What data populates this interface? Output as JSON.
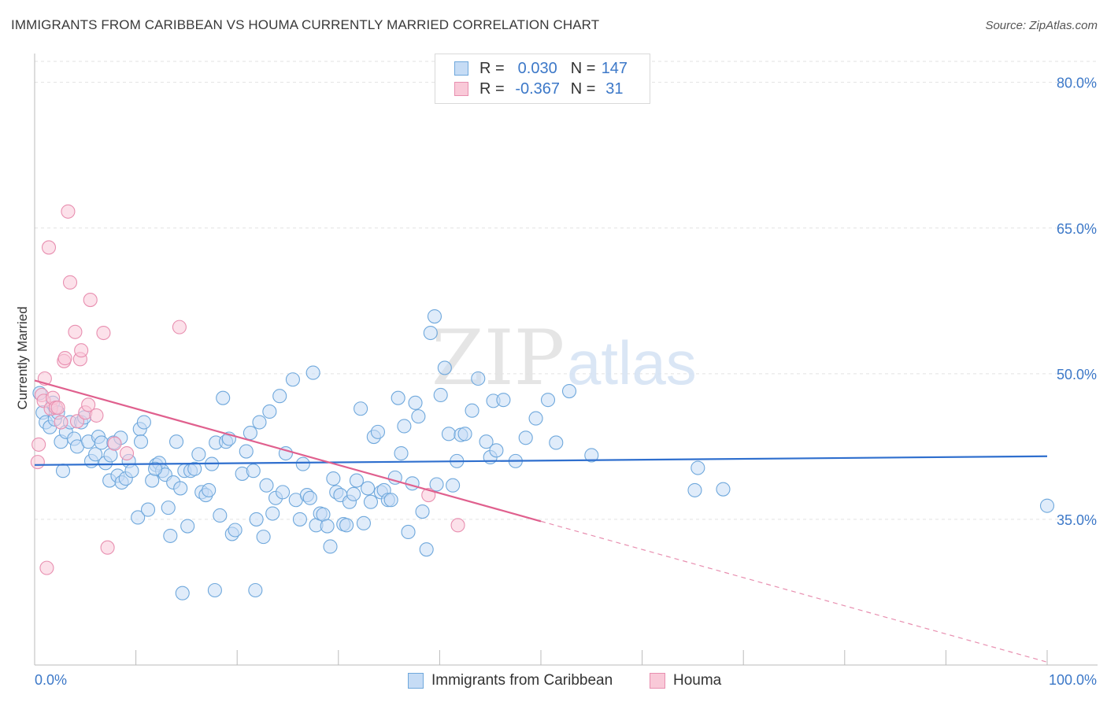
{
  "title": "IMMIGRANTS FROM CARIBBEAN VS HOUMA CURRENTLY MARRIED CORRELATION CHART",
  "source": "Source: ZipAtlas.com",
  "watermark": {
    "zip": "ZIP",
    "atlas": "atlas"
  },
  "legend": {
    "rows": [
      {
        "r_label": "R =",
        "r_value": "0.030",
        "n_label": "N =",
        "n_value": "147",
        "color": "#6fa8dc",
        "fill": "#c6dcf5"
      },
      {
        "r_label": "R =",
        "r_value": "-0.367",
        "n_label": "N =",
        "n_value": "31",
        "color": "#e88fb0",
        "fill": "#f9c9d8"
      }
    ]
  },
  "bottom_legend": [
    "Immigrants from Caribbean",
    "Houma"
  ],
  "chart_data": {
    "type": "scatter",
    "title": "IMMIGRANTS FROM CARIBBEAN VS HOUMA CURRENTLY MARRIED CORRELATION CHART",
    "xlabel": "",
    "ylabel": "Currently Married",
    "xlim": [
      0,
      100
    ],
    "ylim": [
      20,
      82
    ],
    "x_tick_labels": [
      "0.0%",
      "100.0%"
    ],
    "y_ticks": [
      35,
      50,
      65,
      80
    ],
    "y_tick_labels": [
      "35.0%",
      "50.0%",
      "65.0%",
      "80.0%"
    ],
    "grid": true,
    "legend_position": "top-center",
    "series": [
      {
        "name": "Immigrants from Caribbean",
        "color": "#6fa8dc",
        "fill": "#c6dcf5",
        "trend": {
          "x": [
            0,
            100
          ],
          "y": [
            40.6,
            41.5
          ]
        },
        "points": [
          [
            0.5,
            48
          ],
          [
            0.8,
            46
          ],
          [
            1.1,
            45
          ],
          [
            1.5,
            44.5
          ],
          [
            1.8,
            47
          ],
          [
            2,
            45.3
          ],
          [
            2.3,
            46
          ],
          [
            2.6,
            43
          ],
          [
            2.8,
            40
          ],
          [
            3.1,
            44
          ],
          [
            3.5,
            45
          ],
          [
            3.9,
            43.3
          ],
          [
            4.2,
            42.5
          ],
          [
            4.6,
            45
          ],
          [
            4.9,
            45.5
          ],
          [
            5.3,
            43
          ],
          [
            5.6,
            41
          ],
          [
            6,
            41.7
          ],
          [
            6.3,
            43.5
          ],
          [
            6.6,
            42.9
          ],
          [
            7,
            40.8
          ],
          [
            7.4,
            39
          ],
          [
            7.8,
            42.9
          ],
          [
            8.2,
            39.5
          ],
          [
            8.6,
            38.8
          ],
          [
            9,
            39.2
          ],
          [
            9.3,
            41
          ],
          [
            9.6,
            40
          ],
          [
            10.2,
            35.2
          ],
          [
            10.4,
            44.3
          ],
          [
            10.8,
            45
          ],
          [
            11.2,
            36
          ],
          [
            11.6,
            39
          ],
          [
            12,
            40.6
          ],
          [
            12.3,
            40.8
          ],
          [
            12.6,
            40
          ],
          [
            12.9,
            39.6
          ],
          [
            13.2,
            36.2
          ],
          [
            13.4,
            33.3
          ],
          [
            13.7,
            38.8
          ],
          [
            14,
            43
          ],
          [
            14.4,
            38.2
          ],
          [
            14.8,
            40
          ],
          [
            15.1,
            34.3
          ],
          [
            15.4,
            40
          ],
          [
            15.8,
            40.2
          ],
          [
            16.2,
            41.7
          ],
          [
            16.5,
            37.8
          ],
          [
            16.9,
            37.5
          ],
          [
            17.2,
            38
          ],
          [
            17.5,
            40.7
          ],
          [
            17.9,
            42.9
          ],
          [
            18.3,
            35.4
          ],
          [
            18.6,
            47.5
          ],
          [
            18.9,
            43
          ],
          [
            19.2,
            43.3
          ],
          [
            19.5,
            33.5
          ],
          [
            19.8,
            33.9
          ],
          [
            20.5,
            39.7
          ],
          [
            20.9,
            42
          ],
          [
            21.3,
            43.9
          ],
          [
            21.6,
            40
          ],
          [
            21.9,
            35
          ],
          [
            22.2,
            45
          ],
          [
            22.6,
            33.2
          ],
          [
            22.9,
            38.5
          ],
          [
            23.2,
            46.1
          ],
          [
            23.5,
            35.6
          ],
          [
            23.8,
            37.2
          ],
          [
            24.2,
            47.7
          ],
          [
            24.5,
            37.8
          ],
          [
            24.8,
            41.8
          ],
          [
            25.5,
            49.4
          ],
          [
            25.8,
            37
          ],
          [
            26.2,
            35
          ],
          [
            26.5,
            40.7
          ],
          [
            26.9,
            37.5
          ],
          [
            27.2,
            37.2
          ],
          [
            27.5,
            50.1
          ],
          [
            27.8,
            34.4
          ],
          [
            28.2,
            35.6
          ],
          [
            28.5,
            35.5
          ],
          [
            28.9,
            34.3
          ],
          [
            29.2,
            32.2
          ],
          [
            29.5,
            39.2
          ],
          [
            29.8,
            37.8
          ],
          [
            30.2,
            37.5
          ],
          [
            30.5,
            34.5
          ],
          [
            30.8,
            34.4
          ],
          [
            31.1,
            36.8
          ],
          [
            31.5,
            37.6
          ],
          [
            31.8,
            39
          ],
          [
            32.2,
            46.4
          ],
          [
            32.5,
            34.6
          ],
          [
            32.9,
            38.2
          ],
          [
            33.2,
            36.8
          ],
          [
            33.5,
            43.5
          ],
          [
            33.9,
            44
          ],
          [
            34.2,
            37.8
          ],
          [
            34.5,
            38
          ],
          [
            34.9,
            37
          ],
          [
            35.2,
            37
          ],
          [
            35.6,
            39.3
          ],
          [
            35.9,
            47.5
          ],
          [
            36.2,
            41.8
          ],
          [
            36.5,
            44.6
          ],
          [
            36.9,
            33.7
          ],
          [
            37.3,
            38.7
          ],
          [
            37.6,
            47
          ],
          [
            37.9,
            45.6
          ],
          [
            38.3,
            35.8
          ],
          [
            38.7,
            31.9
          ],
          [
            39.1,
            54.2
          ],
          [
            39.5,
            55.9
          ],
          [
            39.7,
            38.6
          ],
          [
            40.1,
            47.8
          ],
          [
            40.5,
            50.6
          ],
          [
            40.9,
            43.8
          ],
          [
            41.3,
            38.5
          ],
          [
            41.7,
            41
          ],
          [
            42.1,
            43.7
          ],
          [
            42.5,
            43.8
          ],
          [
            43.2,
            46.2
          ],
          [
            43.8,
            49.5
          ],
          [
            44.6,
            43
          ],
          [
            45.0,
            41.4
          ],
          [
            45.3,
            47.2
          ],
          [
            45.6,
            42.1
          ],
          [
            46.3,
            47.3
          ],
          [
            47.5,
            41
          ],
          [
            48.5,
            43.4
          ],
          [
            49.5,
            45.4
          ],
          [
            50.7,
            47.3
          ],
          [
            51.5,
            42.9
          ],
          [
            52.8,
            48.2
          ],
          [
            55,
            41.6
          ],
          [
            65.2,
            38
          ],
          [
            65.5,
            40.3
          ],
          [
            68.0,
            38.1
          ],
          [
            100,
            36.4
          ],
          [
            10.5,
            43
          ],
          [
            17.8,
            27.7
          ],
          [
            14.6,
            27.4
          ],
          [
            21.8,
            27.7
          ],
          [
            7.5,
            41.6
          ],
          [
            11.9,
            40.2
          ],
          [
            8.5,
            43.4
          ]
        ]
      },
      {
        "name": "Houma",
        "color": "#e88fb0",
        "fill": "#f9c9d8",
        "trend": {
          "x": [
            0,
            50
          ],
          "y": [
            49.3,
            34.8
          ]
        },
        "trend_extension": {
          "x": [
            50,
            100
          ],
          "y": [
            34.8,
            20.3
          ]
        },
        "points": [
          [
            0.3,
            40.9
          ],
          [
            0.4,
            42.7
          ],
          [
            0.7,
            47.8
          ],
          [
            0.9,
            47.2
          ],
          [
            1,
            49.5
          ],
          [
            1.2,
            30
          ],
          [
            1.4,
            63
          ],
          [
            1.6,
            46.4
          ],
          [
            1.8,
            47.5
          ],
          [
            2.1,
            46.5
          ],
          [
            2.3,
            46.5
          ],
          [
            2.6,
            45
          ],
          [
            2.9,
            51.3
          ],
          [
            3,
            51.6
          ],
          [
            3.3,
            66.7
          ],
          [
            3.5,
            59.4
          ],
          [
            4,
            54.3
          ],
          [
            4.2,
            45.1
          ],
          [
            4.5,
            51.5
          ],
          [
            4.6,
            52.4
          ],
          [
            5,
            46
          ],
          [
            5.3,
            46.8
          ],
          [
            5.5,
            57.6
          ],
          [
            6.1,
            45.7
          ],
          [
            6.8,
            54.2
          ],
          [
            7.2,
            32.1
          ],
          [
            7.9,
            42.8
          ],
          [
            9.1,
            41.8
          ],
          [
            14.3,
            54.8
          ],
          [
            38.9,
            37.5
          ],
          [
            41.8,
            34.4
          ]
        ]
      }
    ]
  }
}
